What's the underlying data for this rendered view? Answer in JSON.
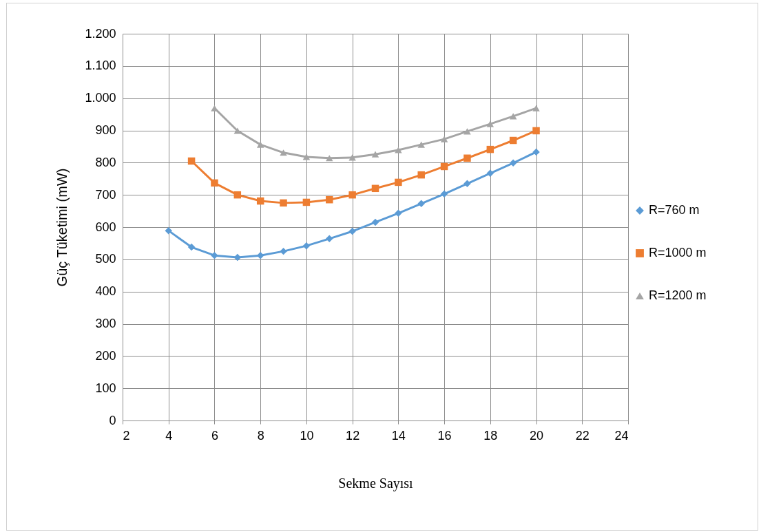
{
  "chart_data": {
    "type": "line",
    "xlabel": "Sekme Sayısı",
    "ylabel": "Güç Tüketimi (mW)",
    "x": [
      4,
      5,
      6,
      7,
      8,
      9,
      10,
      11,
      12,
      13,
      14,
      15,
      16,
      17,
      18,
      19,
      20
    ],
    "series": [
      {
        "name": "R=760 m",
        "color": "#5b9bd5",
        "marker": "diamond",
        "values": [
          589,
          538,
          512,
          506,
          512,
          525,
          542,
          564,
          587,
          615,
          643,
          673,
          703,
          735,
          767,
          799,
          833
        ]
      },
      {
        "name": "R=1000 m",
        "color": "#ed7d31",
        "marker": "square",
        "values": [
          null,
          805,
          737,
          700,
          681,
          675,
          677,
          685,
          700,
          720,
          739,
          762,
          788,
          814,
          841,
          869,
          899
        ]
      },
      {
        "name": "R=1200 m",
        "color": "#a5a5a5",
        "marker": "triangle",
        "values": [
          null,
          null,
          969,
          899,
          856,
          831,
          818,
          814,
          816,
          826,
          839,
          856,
          873,
          897,
          920,
          944,
          969
        ]
      }
    ],
    "xlim": [
      2,
      24
    ],
    "xticks": [
      2,
      4,
      6,
      8,
      10,
      12,
      14,
      16,
      18,
      20,
      22,
      24
    ],
    "ylim": [
      0,
      1200
    ],
    "yticks": [
      0,
      100,
      200,
      300,
      400,
      500,
      600,
      700,
      800,
      900,
      {
        "value": 1000,
        "label": "1.000"
      },
      {
        "value": 1100,
        "label": "1.100"
      },
      {
        "value": 1200,
        "label": "1.200"
      }
    ],
    "grid": true,
    "legend": "right",
    "line_style": "solid"
  }
}
